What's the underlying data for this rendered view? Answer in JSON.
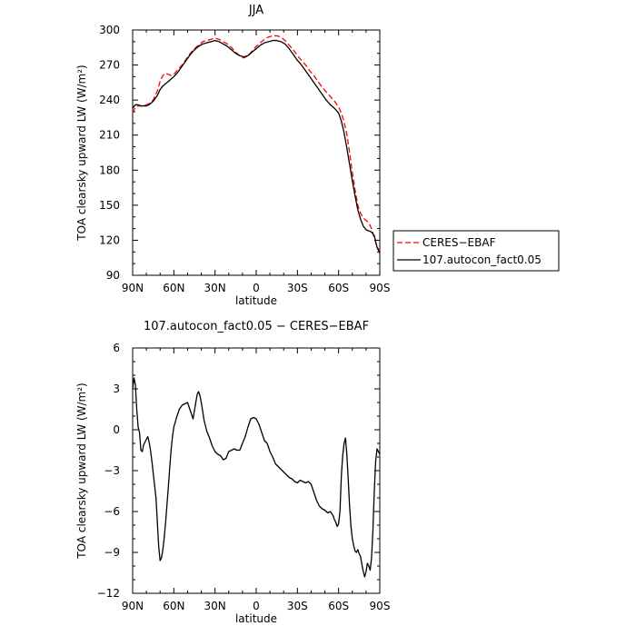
{
  "chart_data": [
    {
      "type": "line",
      "title": "JJA",
      "xlabel": "latitude",
      "ylabel": "TOA clearsky upward LW (W/m²)",
      "xlim": [
        90,
        -90
      ],
      "ylim": [
        90,
        300
      ],
      "x_ticks": [
        90,
        60,
        30,
        0,
        -30,
        -60,
        -90
      ],
      "x_tick_labels": [
        "90N",
        "60N",
        "30N",
        "0",
        "30S",
        "60S",
        "90S"
      ],
      "y_ticks": [
        90,
        120,
        150,
        180,
        210,
        240,
        270,
        300
      ],
      "y_tick_labels": [
        "90",
        "120",
        "150",
        "180",
        "210",
        "240",
        "270",
        "300"
      ],
      "legend_position": "right, outside plot",
      "series": [
        {
          "name": "CERES−EBAF",
          "color": "#ff0000",
          "dash": "dashed",
          "x": [
            90,
            88,
            86,
            84,
            82,
            80,
            78,
            75,
            72,
            70,
            68,
            66,
            64,
            62,
            60,
            57,
            54,
            51,
            48,
            45,
            42,
            39,
            36,
            33,
            30,
            27,
            24,
            21,
            18,
            15,
            12,
            9,
            6,
            3,
            0,
            -3,
            -6,
            -9,
            -12,
            -15,
            -18,
            -21,
            -24,
            -27,
            -30,
            -33,
            -36,
            -39,
            -42,
            -45,
            -48,
            -51,
            -54,
            -57,
            -60,
            -62,
            -64,
            -66,
            -68,
            -70,
            -72,
            -74,
            -76,
            -78,
            -80,
            -82,
            -84,
            -86,
            -88,
            -90
          ],
          "y": [
            229,
            234,
            235,
            235,
            235,
            236,
            237,
            240,
            248,
            256,
            261,
            263,
            262,
            261,
            262,
            266,
            270,
            275,
            280,
            284,
            287,
            290,
            291,
            292,
            293,
            292,
            290,
            288,
            285,
            281,
            278,
            276,
            278,
            282,
            286,
            289,
            292,
            294,
            295,
            295,
            294,
            291,
            287,
            283,
            278,
            274,
            270,
            265,
            261,
            256,
            251,
            247,
            243,
            239,
            234,
            229,
            221,
            211,
            195,
            178,
            163,
            150,
            143,
            139,
            137,
            135,
            130,
            122,
            114,
            111
          ]
        },
        {
          "name": "107.autocon_fact0.05",
          "color": "#000000",
          "dash": "solid",
          "x": [
            90,
            88,
            86,
            84,
            82,
            80,
            78,
            75,
            72,
            70,
            68,
            66,
            64,
            62,
            60,
            57,
            54,
            51,
            48,
            45,
            42,
            39,
            36,
            33,
            30,
            27,
            24,
            21,
            18,
            15,
            12,
            9,
            6,
            3,
            0,
            -3,
            -6,
            -9,
            -12,
            -15,
            -18,
            -21,
            -24,
            -27,
            -30,
            -33,
            -36,
            -39,
            -42,
            -45,
            -48,
            -51,
            -54,
            -57,
            -60,
            -62,
            -64,
            -66,
            -68,
            -70,
            -72,
            -74,
            -76,
            -78,
            -80,
            -82,
            -84,
            -86,
            -88,
            -90
          ],
          "y": [
            233,
            236,
            236,
            235,
            235,
            235,
            236,
            239,
            244,
            249,
            252,
            254,
            256,
            258,
            260,
            264,
            269,
            274,
            279,
            283,
            286,
            288,
            289,
            290,
            291,
            290,
            288,
            286,
            283,
            280,
            278,
            277,
            278,
            281,
            284,
            287,
            289,
            290,
            291,
            291,
            290,
            288,
            284,
            279,
            274,
            270,
            265,
            260,
            255,
            250,
            245,
            240,
            236,
            233,
            229,
            222,
            212,
            199,
            185,
            171,
            158,
            146,
            138,
            132,
            129,
            128,
            127,
            124,
            114,
            109
          ]
        }
      ]
    },
    {
      "type": "line",
      "title": "107.autocon_fact0.05 − CERES−EBAF",
      "xlabel": "latitude",
      "ylabel": "TOA clearsky upward LW (W/m²)",
      "xlim": [
        90,
        -90
      ],
      "ylim": [
        -12,
        6
      ],
      "x_ticks": [
        90,
        60,
        30,
        0,
        -30,
        -60,
        -90
      ],
      "x_tick_labels": [
        "90N",
        "60N",
        "30N",
        "0",
        "30S",
        "60S",
        "90S"
      ],
      "y_ticks": [
        -12,
        -9,
        -6,
        -3,
        0,
        3,
        6
      ],
      "y_tick_labels": [
        "−12",
        "−9",
        "−6",
        "−3",
        "0",
        "3",
        "6"
      ],
      "series": [
        {
          "color": "#000000",
          "dash": "solid",
          "x": [
            90,
            89,
            88,
            87,
            86,
            85,
            84,
            83,
            82,
            81,
            80,
            79,
            78,
            77,
            76,
            75,
            74,
            73,
            72,
            71,
            70,
            69,
            68,
            67,
            66,
            65,
            64,
            63,
            62,
            61,
            60,
            58,
            56,
            54,
            52,
            50,
            48,
            46,
            44,
            43,
            42,
            41,
            40,
            38,
            36,
            34,
            32,
            30,
            28,
            26,
            24,
            22,
            20,
            18,
            16,
            14,
            12,
            10,
            8,
            6,
            4,
            2,
            0,
            -2,
            -4,
            -6,
            -8,
            -10,
            -12,
            -14,
            -16,
            -18,
            -20,
            -22,
            -24,
            -26,
            -28,
            -30,
            -32,
            -34,
            -36,
            -38,
            -40,
            -42,
            -44,
            -46,
            -48,
            -50,
            -52,
            -54,
            -56,
            -57,
            -58,
            -59,
            -60,
            -61,
            -62,
            -63,
            -64,
            -65,
            -66,
            -67,
            -68,
            -69,
            -70,
            -71,
            -72,
            -73,
            -74,
            -75,
            -76,
            -77,
            -78,
            -79,
            -80,
            -81,
            -82,
            -83,
            -84,
            -85,
            -86,
            -87,
            -88,
            -89,
            -90
          ],
          "y": [
            3.0,
            3.8,
            3.3,
            1.5,
            0.2,
            -0.2,
            -1.5,
            -1.6,
            -1.1,
            -0.9,
            -0.7,
            -0.5,
            -0.9,
            -1.5,
            -2.3,
            -3.2,
            -4.1,
            -5.0,
            -6.8,
            -8.6,
            -9.6,
            -9.4,
            -8.8,
            -7.9,
            -6.8,
            -5.5,
            -4.2,
            -2.8,
            -1.5,
            -0.5,
            0.2,
            0.9,
            1.5,
            1.8,
            1.9,
            2.0,
            1.4,
            0.8,
            2.0,
            2.6,
            2.8,
            2.5,
            2.0,
            0.7,
            -0.1,
            -0.6,
            -1.2,
            -1.6,
            -1.8,
            -1.9,
            -2.2,
            -2.1,
            -1.6,
            -1.5,
            -1.4,
            -1.5,
            -1.5,
            -1.0,
            -0.5,
            0.2,
            0.8,
            0.9,
            0.8,
            0.4,
            -0.2,
            -0.8,
            -1.0,
            -1.6,
            -2.0,
            -2.5,
            -2.7,
            -2.9,
            -3.1,
            -3.3,
            -3.5,
            -3.6,
            -3.8,
            -3.9,
            -3.7,
            -3.8,
            -3.9,
            -3.8,
            -4.0,
            -4.6,
            -5.2,
            -5.6,
            -5.8,
            -5.9,
            -6.1,
            -6.0,
            -6.3,
            -6.6,
            -6.8,
            -7.1,
            -6.9,
            -6.0,
            -3.4,
            -1.9,
            -1.0,
            -0.6,
            -1.8,
            -3.6,
            -5.6,
            -7.1,
            -8.0,
            -8.5,
            -8.9,
            -9.0,
            -8.8,
            -9.1,
            -9.3,
            -9.9,
            -10.4,
            -10.8,
            -10.4,
            -9.8,
            -10.0,
            -10.3,
            -9.4,
            -7.4,
            -4.5,
            -2.3,
            -1.4,
            -1.6,
            -1.8
          ]
        }
      ]
    }
  ]
}
